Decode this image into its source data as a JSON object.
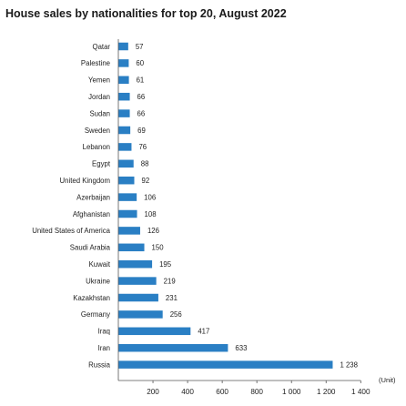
{
  "chart_data": {
    "type": "bar",
    "orientation": "horizontal",
    "title": "House sales by nationalities for top 20, August 2022",
    "categories": [
      "Qatar",
      "Palestine",
      "Yemen",
      "Jordan",
      "Sudan",
      "Sweden",
      "Lebanon",
      "Egypt",
      "United Kingdom",
      "Azerbaijan",
      "Afghanistan",
      "United States of America",
      "Saudi Arabia",
      "Kuwait",
      "Ukraine",
      "Kazakhstan",
      "Germany",
      "Iraq",
      "Iran",
      "Russia"
    ],
    "values": [
      57,
      60,
      61,
      66,
      66,
      69,
      76,
      88,
      92,
      106,
      108,
      126,
      150,
      195,
      219,
      231,
      256,
      417,
      633,
      1238
    ],
    "value_labels": [
      "57",
      "60",
      "61",
      "66",
      "66",
      "69",
      "76",
      "88",
      "92",
      "106",
      "108",
      "126",
      "150",
      "195",
      "219",
      "231",
      "256",
      "417",
      "633",
      "1 238"
    ],
    "x_ticks": [
      200,
      400,
      600,
      800,
      1000,
      1200,
      1400
    ],
    "x_tick_labels": [
      "200",
      "400",
      "600",
      "800",
      "1 000",
      "1 200",
      "1 400"
    ],
    "xlim": [
      0,
      1400
    ],
    "unit_label": "(Unit)",
    "bar_color": "#2a7fc4",
    "grid": false
  }
}
